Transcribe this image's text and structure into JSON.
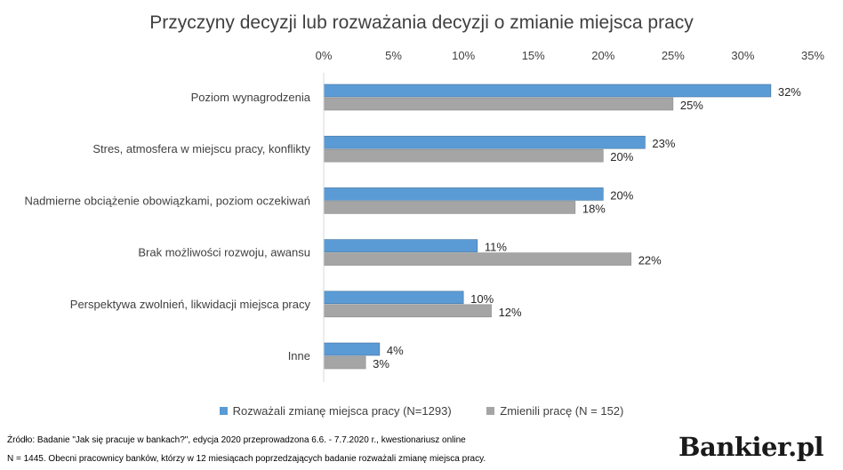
{
  "chart_data": {
    "type": "bar",
    "orientation": "horizontal",
    "title": "Przyczyny decyzji lub rozważania decyzji o zmianie miejsca pracy",
    "categories": [
      "Poziom wynagrodzenia",
      "Stres, atmosfera w miejscu pracy, konflikty",
      "Nadmierne obciążenie obowiązkami, poziom oczekiwań",
      "Brak możliwości rozwoju, awansu",
      "Perspektywa zwolnień, likwidacji miejsca pracy",
      "Inne"
    ],
    "series": [
      {
        "name": "Rozważali zmianę miejsca pracy (N=1293)",
        "color": "#5b9bd5",
        "values": [
          32,
          23,
          20,
          11,
          10,
          4
        ],
        "labels": [
          "32%",
          "23%",
          "20%",
          "11%",
          "10%",
          "4%"
        ]
      },
      {
        "name": "Zmienili pracę (N = 152)",
        "color": "#a5a5a5",
        "values": [
          25,
          20,
          18,
          22,
          12,
          3
        ],
        "labels": [
          "25%",
          "20%",
          "18%",
          "22%",
          "12%",
          "3%"
        ]
      }
    ],
    "xlim": [
      0,
      35
    ],
    "xticks": [
      0,
      5,
      10,
      15,
      20,
      25,
      30,
      35
    ],
    "xtick_labels": [
      "0%",
      "5%",
      "10%",
      "15%",
      "20%",
      "25%",
      "30%",
      "35%"
    ],
    "axis_position": "top",
    "grid": false,
    "legend_position": "bottom"
  },
  "footer": {
    "source": "Źródło: Badanie \"Jak się pracuje w bankach?\", edycja 2020 przeprowadzona 6.6. - 7.7.2020 r., kwestionariusz online",
    "note": "N = 1445. Obecni pracownicy banków, którzy w 12 miesiącach poprzedzających badanie rozważali zmianę miejsca pracy.",
    "brand": "Bankier.pl"
  }
}
